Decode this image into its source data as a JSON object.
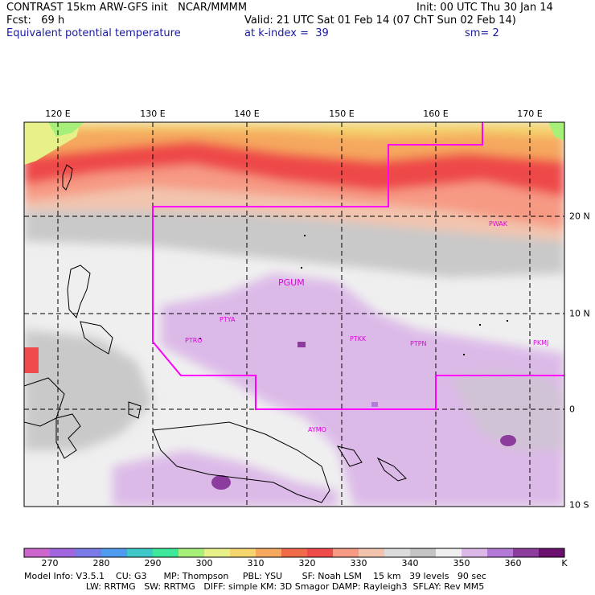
{
  "header": {
    "line1_left": "CONTRAST 15km ARW-GFS init   NCAR/MMMM",
    "line1_right": "Init: 00 UTC Thu 30 Jan 14",
    "line2_left": "Fcst:   69 h",
    "line2_right": "Valid: 21 UTC Sat 01 Feb 14 (07 ChT Sun 02 Feb 14)",
    "line3_left": "Equivalent potential temperature",
    "line3_mid": "at k-index =  39",
    "line3_right": "sm= 2"
  },
  "map": {
    "lon_labels": [
      "120 E",
      "130 E",
      "140 E",
      "150 E",
      "160 E",
      "170 E"
    ],
    "lat_labels": [
      "20 N",
      "10 N",
      "0",
      "10 S"
    ],
    "stations": [
      "PGUM",
      "PTYA",
      "PTRO",
      "PTKK",
      "PTPN",
      "PKMJ",
      "PWAK",
      "AYMO"
    ]
  },
  "colorbar": {
    "labels": [
      "270",
      "280",
      "290",
      "300",
      "310",
      "320",
      "330",
      "340",
      "350",
      "360",
      "K"
    ],
    "colors": [
      "#cc66cc",
      "#a066dd",
      "#7a7ae8",
      "#4f9bf0",
      "#3ec8c8",
      "#3ee89a",
      "#a6f07a",
      "#e8f08a",
      "#f4d56e",
      "#f5a85e",
      "#f06a4a",
      "#ee4a4a",
      "#f69a84",
      "#f2c4ae",
      "#dcdcdc",
      "#c4c4c4",
      "#efefef",
      "#dcb8e8",
      "#b47ad8",
      "#8c3c9c",
      "#6c1070"
    ]
  },
  "footer": {
    "line1": "Model Info: V3.5.1    CU: G3      MP: Thompson     PBL: YSU       SF: Noah LSM    15 km   39 levels   90 sec",
    "line2": "                      LW: RRTMG   SW: RRTMG   DIFF: simple KM: 3D Smagor DAMP: Rayleigh3  SFLAY: Rev MM5"
  },
  "colors": {
    "header_blue": "#1a1aa0",
    "station_magenta": "#e000e0",
    "boundary_magenta": "#ff00ff"
  }
}
